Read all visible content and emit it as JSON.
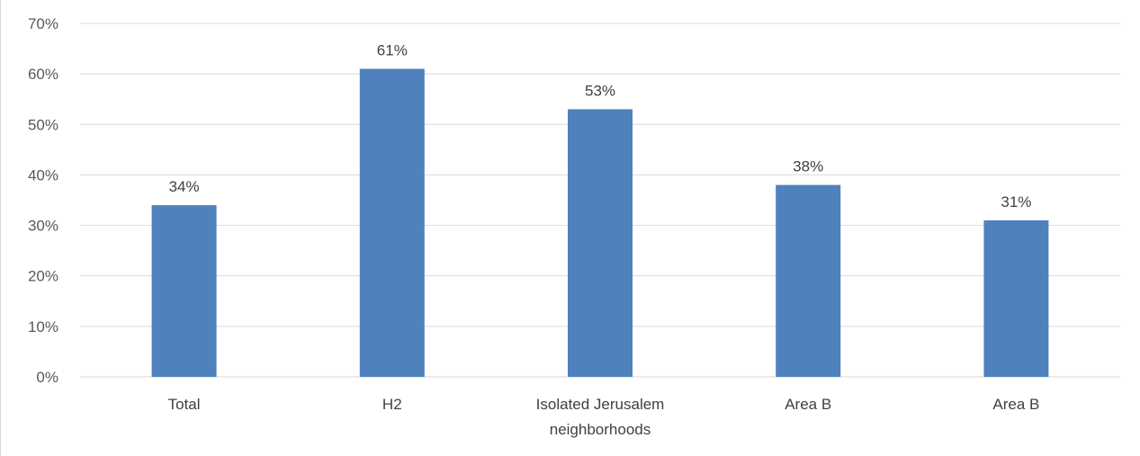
{
  "chart_data": {
    "type": "bar",
    "categories": [
      [
        "Total"
      ],
      [
        "H2"
      ],
      [
        "Isolated Jerusalem",
        "neighborhoods"
      ],
      [
        "Area B"
      ],
      [
        "Area B"
      ]
    ],
    "values": [
      34,
      61,
      53,
      38,
      31
    ],
    "data_labels": [
      "34%",
      "61%",
      "53%",
      "38%",
      "31%"
    ],
    "y_ticks": [
      "0%",
      "10%",
      "20%",
      "30%",
      "40%",
      "50%",
      "60%",
      "70%"
    ],
    "ylim": [
      0,
      70
    ],
    "grid": true,
    "legend": "none",
    "bar_color": "#4f81bd",
    "grid_color": "#d9d9d9"
  }
}
